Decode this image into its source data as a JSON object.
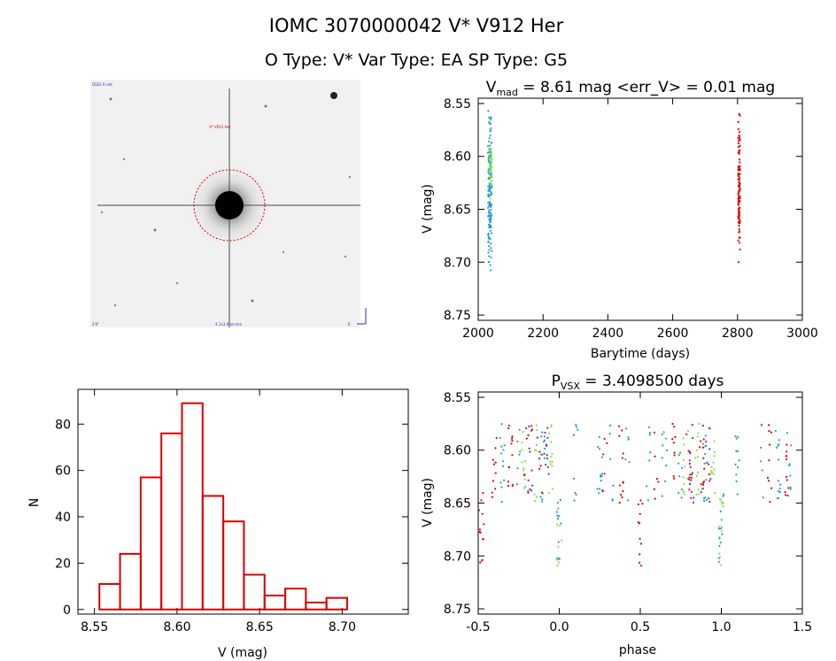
{
  "header": {
    "title": "IOMC 3070000042     V* V912 Her",
    "subtitle": "O Type: V*   Var Type: EA   SP Type: G5"
  },
  "image_panel": {
    "label_top_left": "DSS2 R red",
    "label_target": "V* V912 Her",
    "label_bottom_left": "2'0\"",
    "label_bottom_center": "4.1x3.9 arcmin",
    "label_bottom_right": "E"
  },
  "colors": {
    "red_series": "#dd0000",
    "cyan_series": "#1e9fd0",
    "green_series": "#7ee83a",
    "purple_series": "#8b2a8b",
    "hist_bar": "#dd0000"
  },
  "chart_data": [
    {
      "type": "scatter",
      "id": "light_curve",
      "title_main": "V",
      "title_sub": "mad",
      "title_rest": " = 8.61 mag <err_V> = 0.01 mag",
      "xlabel": "Barytime (days)",
      "ylabel": "V (mag)",
      "xlim": [
        2000,
        3000
      ],
      "ylim": [
        8.755,
        8.545
      ],
      "x_ticks": [
        2000,
        2200,
        2400,
        2600,
        2800,
        3000
      ],
      "y_ticks": [
        8.55,
        8.6,
        8.65,
        8.7,
        8.75
      ],
      "y_tick_labels": [
        "8.55",
        "8.60",
        "8.65",
        "8.70",
        "8.75"
      ],
      "clusters": [
        {
          "name": "cyan",
          "x_range": [
            2030,
            2042
          ],
          "y_range": [
            8.555,
            8.71
          ],
          "count": 140
        },
        {
          "name": "green",
          "x_range": [
            2034,
            2042
          ],
          "y_range": [
            8.575,
            8.64
          ],
          "count": 40
        },
        {
          "name": "red",
          "x_range": [
            2802,
            2808
          ],
          "y_range": [
            8.56,
            8.7
          ],
          "count": 110
        }
      ]
    },
    {
      "type": "bar",
      "id": "histogram",
      "xlabel": "V (mag)",
      "ylabel": "N",
      "xlim": [
        8.54,
        8.74
      ],
      "ylim": [
        -2,
        95
      ],
      "x_ticks": [
        8.55,
        8.6,
        8.65,
        8.7
      ],
      "x_tick_labels": [
        "8.55",
        "8.60",
        "8.65",
        "8.70"
      ],
      "y_ticks": [
        0,
        20,
        40,
        60,
        80
      ],
      "bin_start": 8.553,
      "bin_width": 0.0125,
      "values": [
        11,
        24,
        57,
        76,
        89,
        49,
        38,
        15,
        6,
        9,
        3,
        5
      ]
    },
    {
      "type": "scatter",
      "id": "phase_curve",
      "title_main": "P",
      "title_sub": "VSX",
      "title_rest": " = 3.4098500 days",
      "xlabel": "phase",
      "ylabel": "V (mag)",
      "xlim": [
        -0.5,
        1.5
      ],
      "ylim": [
        8.755,
        8.545
      ],
      "x_ticks": [
        -0.5,
        0.0,
        0.5,
        1.0,
        1.5
      ],
      "x_tick_labels": [
        "-0.5",
        "0.0",
        "0.5",
        "1.0",
        "1.5"
      ],
      "y_ticks": [
        8.55,
        8.6,
        8.65,
        8.7,
        8.75
      ],
      "y_tick_labels": [
        "8.55",
        "8.60",
        "8.65",
        "8.70",
        "8.75"
      ],
      "groups": [
        {
          "color": "red",
          "phases": [
            -0.48,
            -0.4,
            -0.3,
            -0.2,
            -0.12,
            0.28,
            0.38,
            0.5,
            0.6,
            0.7,
            0.8,
            0.88,
            1.3,
            1.4
          ]
        },
        {
          "color": "cyan",
          "phases": [
            -0.35,
            -0.25,
            -0.1,
            0.0,
            0.1,
            0.25,
            0.32,
            0.42,
            0.55,
            0.65,
            0.75,
            0.9,
            1.0,
            1.1,
            1.25,
            1.35,
            1.42
          ]
        },
        {
          "color": "green",
          "phases": [
            -0.22,
            -0.15,
            -0.05,
            0.0,
            0.78,
            0.85,
            0.95,
            1.0
          ]
        },
        {
          "color": "purple",
          "phases": [
            -0.18,
            -0.08,
            0.82,
            0.92
          ]
        }
      ]
    }
  ]
}
